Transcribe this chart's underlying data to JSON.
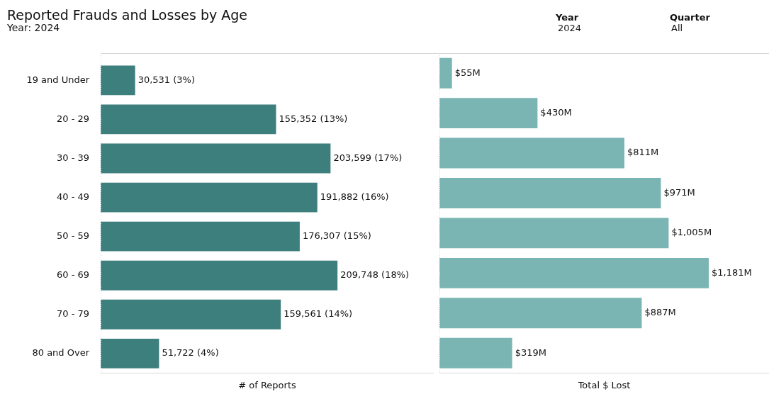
{
  "chart_data": [
    {
      "type": "bar",
      "orientation": "horizontal",
      "title": "Reported Frauds and Losses by Age",
      "subtitle": "Year: 2024",
      "annotations": [
        "Year",
        "2024",
        "Quarter",
        "All"
      ],
      "xlabel": "# of Reports",
      "categories": [
        "19 and Under",
        "20 - 29",
        "30 - 39",
        "40 - 49",
        "50 - 59",
        "60 - 69",
        "70 - 79",
        "80 and Over"
      ],
      "values": [
        30531,
        155352,
        203599,
        191882,
        176307,
        209748,
        159561,
        51722
      ],
      "value_labels": [
        "30,531 (3%)",
        "155,352 (13%)",
        "203,599 (17%)",
        "191,882 (16%)",
        "176,307 (15%)",
        "209,748 (18%)",
        "159,561 (14%)",
        "51,722 (4%)"
      ],
      "color": "#3d7f7d",
      "xlim": [
        0,
        295000
      ],
      "tick_labels": "y",
      "grid": false,
      "legend": false
    },
    {
      "type": "bar",
      "orientation": "horizontal",
      "xlabel": "Total $ Lost",
      "categories": [
        null,
        null,
        null,
        null,
        null,
        null,
        null,
        null
      ],
      "values": [
        55,
        430,
        811,
        971,
        1005,
        1181,
        887,
        319
      ],
      "value_labels": [
        "$55M",
        "$430M",
        "$811M",
        "$971M",
        "$1,005M",
        "$1,181M",
        "$887M",
        "$319M"
      ],
      "color": "#7ab5b3",
      "xlim": [
        0,
        1445
      ],
      "tick_labels": false,
      "grid": false,
      "legend": false
    }
  ]
}
